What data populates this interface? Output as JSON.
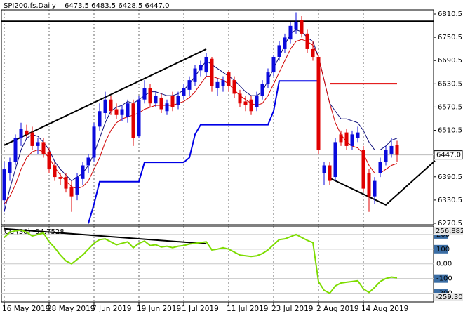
{
  "chart_data": [
    {
      "type": "candlestick",
      "title": "SPI200.fs,Daily",
      "subtitle": "6473.5 6483.5 6428.5 6447.0",
      "categories": [
        "16 May 2019",
        null,
        null,
        null,
        null,
        null,
        null,
        null,
        "28 May 2019",
        null,
        null,
        null,
        null,
        null,
        null,
        null,
        "7 Jun 2019",
        null,
        null,
        null,
        null,
        null,
        null,
        null,
        "19 Jun 2019",
        null,
        null,
        null,
        null,
        null,
        null,
        null,
        "1 Jul 2019",
        null,
        null,
        null,
        null,
        null,
        null,
        null,
        "11 Jul 2019",
        null,
        null,
        null,
        null,
        null,
        null,
        null,
        "23 Jul 2019",
        null,
        null,
        null,
        null,
        null,
        null,
        null,
        "2 Aug 2019",
        null,
        null,
        null,
        null,
        null,
        null,
        null,
        "14 Aug 2019",
        null,
        null,
        null,
        null,
        null,
        null
      ],
      "open": [
        6330,
        6400,
        6430,
        6490,
        6510,
        6505,
        6470,
        6480,
        6455,
        6420,
        6390,
        6390,
        6365,
        6345,
        6385,
        6420,
        6440,
        6520,
        6555,
        6590,
        6565,
        6550,
        6545,
        6580,
        6495,
        6590,
        6620,
        6580,
        6595,
        6560,
        6600,
        6575,
        6600,
        6615,
        6635,
        6665,
        6660,
        6695,
        6620,
        6625,
        6660,
        6640,
        6605,
        6585,
        6590,
        6570,
        6600,
        6630,
        6660,
        6700,
        6720,
        6745,
        6770,
        6795,
        6760,
        6720,
        6700,
        6400,
        6420,
        6390,
        6500,
        6505,
        6470,
        6490,
        6460,
        6400,
        6340,
        6400,
        6430,
        6450,
        6473.5
      ],
      "high": [
        6430,
        6440,
        6500,
        6530,
        6525,
        6520,
        6490,
        6490,
        6465,
        6430,
        6400,
        6400,
        6380,
        6400,
        6430,
        6450,
        6530,
        6580,
        6610,
        6600,
        6580,
        6575,
        6590,
        6590,
        6600,
        6640,
        6630,
        6610,
        6605,
        6590,
        6610,
        6610,
        6630,
        6650,
        6680,
        6690,
        6710,
        6700,
        6645,
        6650,
        6665,
        6650,
        6615,
        6600,
        6600,
        6610,
        6640,
        6670,
        6705,
        6740,
        6760,
        6790,
        6815,
        6805,
        6770,
        6740,
        6705,
        6430,
        6430,
        6490,
        6510,
        6515,
        6510,
        6520,
        6470,
        6410,
        6390,
        6440,
        6470,
        6490,
        6483.5
      ],
      "low": [
        6300,
        6380,
        6420,
        6470,
        6490,
        6460,
        6450,
        6440,
        6400,
        6380,
        6370,
        6350,
        6300,
        6330,
        6370,
        6400,
        6430,
        6510,
        6540,
        6550,
        6540,
        6535,
        6530,
        6470,
        6490,
        6580,
        6570,
        6570,
        6555,
        6550,
        6560,
        6565,
        6590,
        6600,
        6625,
        6650,
        6650,
        6610,
        6600,
        6610,
        6610,
        6595,
        6570,
        6560,
        6550,
        6560,
        6590,
        6620,
        6650,
        6690,
        6710,
        6735,
        6760,
        6750,
        6710,
        6690,
        6450,
        6370,
        6370,
        6380,
        6470,
        6460,
        6460,
        6480,
        6350,
        6300,
        6320,
        6390,
        6420,
        6440,
        6428.5
      ],
      "close": [
        6410,
        6430,
        6490,
        6515,
        6500,
        6470,
        6480,
        6450,
        6410,
        6390,
        6385,
        6360,
        6340,
        6390,
        6420,
        6440,
        6520,
        6560,
        6590,
        6560,
        6550,
        6565,
        6580,
        6490,
        6590,
        6620,
        6580,
        6600,
        6565,
        6580,
        6570,
        6600,
        6620,
        6640,
        6670,
        6680,
        6700,
        6625,
        6635,
        6640,
        6625,
        6605,
        6580,
        6575,
        6560,
        6600,
        6630,
        6660,
        6700,
        6730,
        6750,
        6780,
        6790,
        6760,
        6720,
        6700,
        6460,
        6420,
        6380,
        6480,
        6480,
        6470,
        6500,
        6505,
        6360,
        6340,
        6380,
        6430,
        6460,
        6470,
        6447
      ],
      "up_color": "#0a0adc",
      "down_color": "#e00000",
      "overlays": [
        {
          "color": "#0c0c78",
          "values": [
            6300,
            6360,
            6410,
            6460,
            6490,
            6500,
            6495,
            6480,
            6460,
            6430,
            6410,
            6395,
            6380,
            6390,
            6400,
            6420,
            6450,
            6490,
            6530,
            6560,
            6570,
            6575,
            6585,
            6580,
            6590,
            6600,
            6610,
            6610,
            6605,
            6600,
            6600,
            6605,
            6615,
            6630,
            6650,
            6670,
            6690,
            6680,
            6670,
            6660,
            6650,
            6640,
            6625,
            6610,
            6600,
            6600,
            6610,
            6640,
            6670,
            6700,
            6730,
            6760,
            6770,
            6765,
            6750,
            6740,
            6700,
            6640,
            6580,
            6560,
            6540,
            6540,
            6535,
            6530,
            6510,
            6480,
            6460,
            6460,
            6470,
            6485,
            6490
          ]
        },
        {
          "color": "#d00000",
          "values": [
            6320,
            6340,
            6370,
            6410,
            6440,
            6455,
            6460,
            6455,
            6440,
            6415,
            6395,
            6380,
            6365,
            6360,
            6365,
            6380,
            6410,
            6440,
            6480,
            6510,
            6530,
            6540,
            6545,
            6550,
            6555,
            6565,
            6570,
            6575,
            6575,
            6575,
            6575,
            6580,
            6585,
            6595,
            6610,
            6630,
            6650,
            6650,
            6645,
            6640,
            6630,
            6615,
            6600,
            6590,
            6580,
            6575,
            6580,
            6600,
            6630,
            6660,
            6690,
            6720,
            6740,
            6745,
            6740,
            6730,
            6700,
            6640,
            6580,
            6530,
            6500,
            6480,
            6470,
            6465,
            6450,
            6420,
            6400,
            6400,
            6410,
            6420,
            6425
          ]
        },
        {
          "color": "#0000e6",
          "values": [
            null,
            null,
            null,
            null,
            null,
            null,
            null,
            null,
            null,
            null,
            null,
            null,
            null,
            null,
            null,
            6270,
            6320,
            6378,
            6378,
            6378,
            6378,
            6378,
            6378,
            6378,
            6378,
            6428,
            6428,
            6428,
            6428,
            6428,
            6428,
            6428,
            6428,
            6440,
            6500,
            6525,
            6525,
            6525,
            6525,
            6525,
            6525,
            6525,
            6525,
            6525,
            6525,
            6525,
            6525,
            6525,
            6560,
            6638,
            6638,
            6638,
            6638,
            6638,
            6638,
            6638,
            6638,
            null,
            null,
            null,
            null,
            null,
            null,
            null,
            null,
            null,
            null,
            null,
            null,
            null,
            null
          ]
        }
      ],
      "trendlines": [
        {
          "color": "#000000",
          "points": [
            [
              0,
              6472
            ],
            [
              36,
              6720
            ]
          ]
        },
        {
          "color": "#000000",
          "points": [
            [
              -0.5,
              6792
            ],
            [
              76.5,
              6792
            ]
          ]
        },
        {
          "color": "#000000",
          "points": [
            [
              57.75,
              6389
            ],
            [
              68,
              6318
            ],
            [
              76.75,
              6432
            ]
          ]
        },
        {
          "color": "#e00000",
          "points": [
            [
              58,
              6631
            ],
            [
              70,
              6631
            ]
          ]
        }
      ],
      "last_price": {
        "value": 6447,
        "label": "6447.0"
      },
      "ylim": [
        6266.9,
        6821.4
      ],
      "yticks": [
        6810.5,
        6750.5,
        6690.5,
        6630.5,
        6570.5,
        6510.5,
        6390.5,
        6330.5,
        6270.5
      ],
      "grid": true
    },
    {
      "type": "line",
      "title": "CCI(30) -94.7528",
      "color": "#7ddc00",
      "values": [
        180,
        215,
        225,
        230,
        215,
        190,
        200,
        210,
        150,
        110,
        60,
        20,
        0,
        30,
        60,
        100,
        140,
        165,
        170,
        150,
        130,
        140,
        150,
        110,
        140,
        155,
        125,
        130,
        115,
        120,
        110,
        120,
        125,
        135,
        140,
        145,
        150,
        95,
        100,
        110,
        100,
        80,
        60,
        55,
        50,
        55,
        70,
        95,
        130,
        165,
        170,
        185,
        200,
        180,
        160,
        145,
        -120,
        -180,
        -200,
        -150,
        -130,
        -125,
        -120,
        -115,
        -170,
        -195,
        -160,
        -120,
        -100,
        -90,
        -94.7528
      ],
      "trendlines": [
        {
          "color": "#000000",
          "points": [
            [
              0,
              239
            ],
            [
              36,
              137
            ]
          ]
        }
      ],
      "ylim": [
        -259.301,
        256.8823
      ],
      "yticks": [
        200,
        100,
        {
          "value": 0,
          "label": "0.00"
        },
        -100,
        -200
      ],
      "grid": true
    }
  ]
}
